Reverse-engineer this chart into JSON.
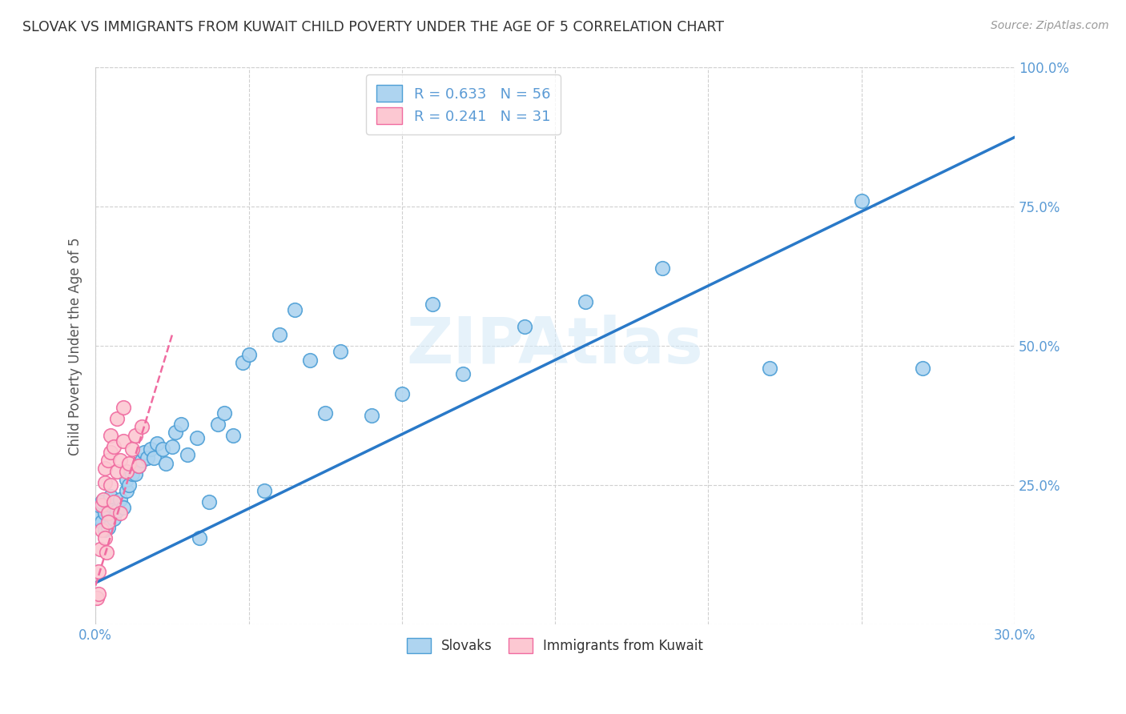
{
  "title": "SLOVAK VS IMMIGRANTS FROM KUWAIT CHILD POVERTY UNDER THE AGE OF 5 CORRELATION CHART",
  "source": "Source: ZipAtlas.com",
  "ylabel": "Child Poverty Under the Age of 5",
  "x_min": 0.0,
  "x_max": 0.3,
  "y_min": 0.0,
  "y_max": 1.0,
  "x_ticks": [
    0.0,
    0.05,
    0.1,
    0.15,
    0.2,
    0.25,
    0.3
  ],
  "y_ticks": [
    0.0,
    0.25,
    0.5,
    0.75,
    1.0
  ],
  "y_tick_labels_right": [
    "",
    "25.0%",
    "50.0%",
    "75.0%",
    "100.0%"
  ],
  "slovak_color": "#aed4f0",
  "slovak_edge": "#4d9fd6",
  "kuwait_color": "#fcc8d2",
  "kuwait_edge": "#f06ba0",
  "trendline_slovak_color": "#2979c8",
  "trendline_kuwait_color": "#f06ba0",
  "legend_R_slovak": "R = 0.633",
  "legend_N_slovak": "N = 56",
  "legend_R_kuwait": "R = 0.241",
  "legend_N_kuwait": "N = 31",
  "legend_color": "#5b9bd5",
  "watermark": "ZIPAtlas",
  "slovak_x": [
    0.001,
    0.001,
    0.002,
    0.002,
    0.003,
    0.003,
    0.004,
    0.004,
    0.005,
    0.005,
    0.006,
    0.007,
    0.008,
    0.009,
    0.01,
    0.01,
    0.011,
    0.012,
    0.013,
    0.014,
    0.015,
    0.016,
    0.017,
    0.018,
    0.019,
    0.02,
    0.022,
    0.023,
    0.025,
    0.026,
    0.028,
    0.03,
    0.033,
    0.034,
    0.037,
    0.04,
    0.042,
    0.045,
    0.048,
    0.05,
    0.055,
    0.06,
    0.065,
    0.07,
    0.075,
    0.08,
    0.09,
    0.1,
    0.11,
    0.12,
    0.14,
    0.16,
    0.185,
    0.22,
    0.25,
    0.27
  ],
  "slovak_y": [
    0.195,
    0.215,
    0.185,
    0.22,
    0.17,
    0.2,
    0.205,
    0.175,
    0.215,
    0.23,
    0.19,
    0.205,
    0.225,
    0.21,
    0.24,
    0.26,
    0.25,
    0.27,
    0.27,
    0.285,
    0.295,
    0.31,
    0.3,
    0.315,
    0.3,
    0.325,
    0.315,
    0.29,
    0.32,
    0.345,
    0.36,
    0.305,
    0.335,
    0.155,
    0.22,
    0.36,
    0.38,
    0.34,
    0.47,
    0.485,
    0.24,
    0.52,
    0.565,
    0.475,
    0.38,
    0.49,
    0.375,
    0.415,
    0.575,
    0.45,
    0.535,
    0.58,
    0.64,
    0.46,
    0.76,
    0.46
  ],
  "kuwait_x": [
    0.0005,
    0.001,
    0.001,
    0.0015,
    0.002,
    0.002,
    0.0025,
    0.003,
    0.003,
    0.003,
    0.0035,
    0.004,
    0.004,
    0.004,
    0.005,
    0.005,
    0.005,
    0.006,
    0.006,
    0.007,
    0.007,
    0.008,
    0.008,
    0.009,
    0.009,
    0.01,
    0.011,
    0.012,
    0.013,
    0.014,
    0.015
  ],
  "kuwait_y": [
    0.048,
    0.095,
    0.055,
    0.135,
    0.17,
    0.215,
    0.225,
    0.255,
    0.28,
    0.155,
    0.13,
    0.2,
    0.185,
    0.295,
    0.25,
    0.31,
    0.34,
    0.22,
    0.32,
    0.275,
    0.37,
    0.295,
    0.2,
    0.33,
    0.39,
    0.275,
    0.29,
    0.315,
    0.34,
    0.285,
    0.355
  ],
  "trendline_sk_x0": 0.0,
  "trendline_sk_y0": 0.075,
  "trendline_sk_x1": 0.3,
  "trendline_sk_y1": 0.875,
  "trendline_kw_x0": 0.0,
  "trendline_kw_y0": 0.07,
  "trendline_kw_x1": 0.025,
  "trendline_kw_y1": 0.52
}
